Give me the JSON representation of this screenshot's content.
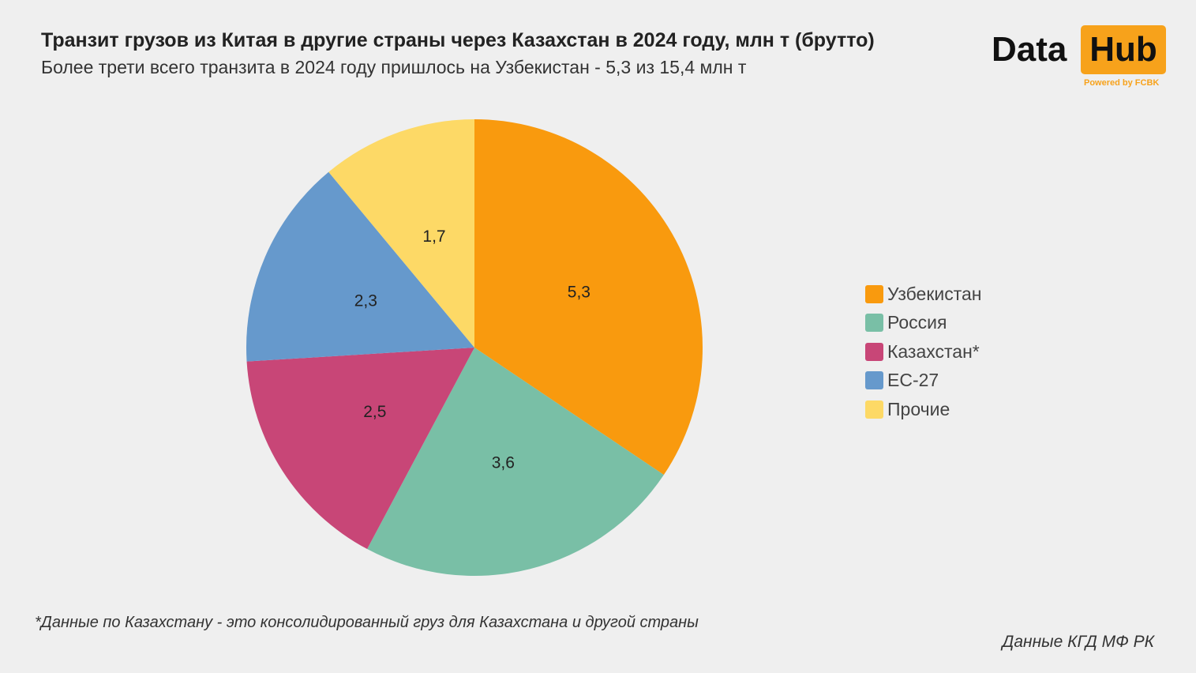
{
  "header": {
    "title": "Транзит грузов из Китая в другие страны через Казахстан в 2024 году, млн т (брутто)",
    "subtitle": "Более трети всего транзита в 2024 году пришлось на Узбекистан - 5,3 из 15,4 млн т"
  },
  "logo": {
    "data": "Data",
    "hub": "Hub",
    "powered": "Powered by FCBK"
  },
  "chart_data": {
    "type": "pie",
    "title": "Транзит грузов из Китая в другие страны через Казахстан в 2024 году, млн т (брутто)",
    "unit": "млн т",
    "total": 15.4,
    "start": "top, clockwise",
    "legend_position": "right",
    "slices": [
      {
        "name": "Узбекистан",
        "value": 5.3,
        "label": "5,3",
        "color": "#F99A0E"
      },
      {
        "name": "Россия",
        "value": 3.6,
        "label": "3,6",
        "color": "#79BFA6"
      },
      {
        "name": "Казахстан*",
        "value": 2.5,
        "label": "2,5",
        "color": "#C84677"
      },
      {
        "name": "ЕС-27",
        "value": 2.3,
        "label": "2,3",
        "color": "#6699CC"
      },
      {
        "name": "Прочие",
        "value": 1.7,
        "label": "1,7",
        "color": "#FDD966"
      }
    ]
  },
  "footnote": "*Данные по Казахстану - это консолидированный груз для Казахстана и другой страны",
  "source": "Данные КГД МФ РК"
}
